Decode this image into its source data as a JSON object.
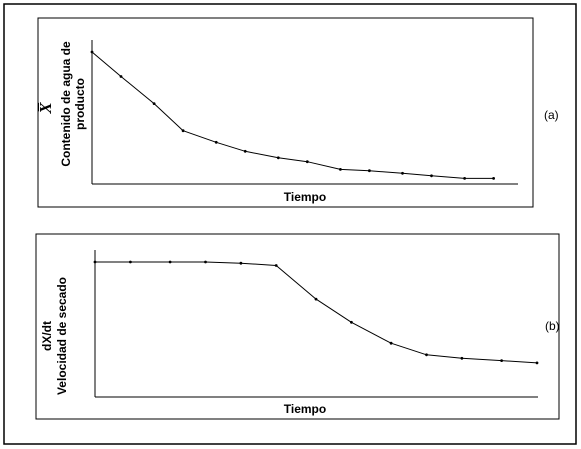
{
  "chart_data": [
    {
      "type": "line",
      "panel_label": "(a)",
      "xlabel": "Tiempo",
      "ylabel_symbol": "X̅",
      "ylabel_line1": "Contenido de agua de",
      "ylabel_line2": "producto",
      "xlim": [
        0,
        100
      ],
      "ylim": [
        0,
        100
      ],
      "grid": false,
      "series": [
        {
          "x": [
            0,
            7,
            15,
            22,
            30,
            37,
            45,
            52,
            60,
            67,
            75,
            82,
            90,
            97
          ],
          "y": [
            100,
            81,
            60,
            39,
            30,
            23,
            18,
            15,
            9,
            8,
            6,
            4,
            2,
            2
          ]
        }
      ]
    },
    {
      "type": "line",
      "panel_label": "(b)",
      "xlabel": "Tiempo",
      "ylabel_line1": "dX/dt",
      "ylabel_line2": "Velocidad de secado",
      "xlim": [
        0,
        100
      ],
      "ylim": [
        0,
        100
      ],
      "grid": false,
      "series": [
        {
          "x": [
            0,
            8,
            17,
            25,
            33,
            41,
            50,
            58,
            67,
            75,
            83,
            92,
            100
          ],
          "y": [
            100,
            100,
            100,
            100,
            99,
            97,
            68,
            48,
            30,
            20,
            17,
            15,
            13
          ]
        }
      ]
    }
  ]
}
